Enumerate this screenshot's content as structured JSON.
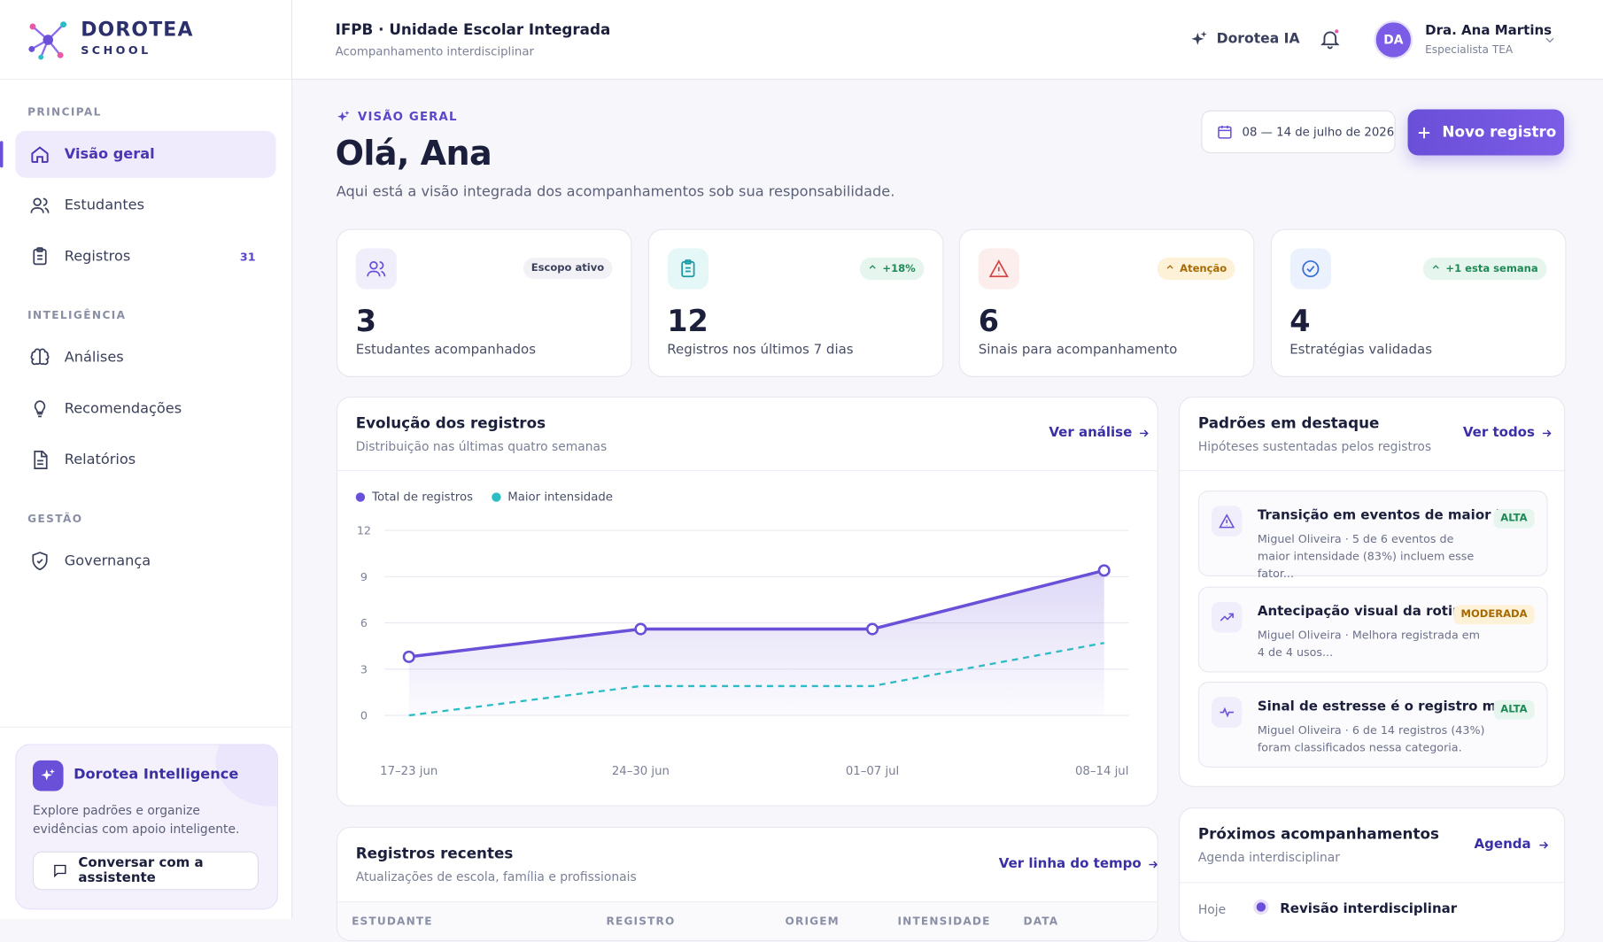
{
  "sidebar": {
    "brand": "DOROTEA",
    "brand_sub": "SCHOOL",
    "sections": [
      {
        "title": "PRINCIPAL",
        "items": [
          {
            "label": "Visão geral"
          },
          {
            "label": "Estudantes"
          },
          {
            "label": "Registros",
            "badge": 31
          }
        ]
      },
      {
        "title": "INTELIGÊNCIA",
        "items": [
          {
            "label": "Análises"
          },
          {
            "label": "Recomendações"
          },
          {
            "label": "Relatórios"
          }
        ]
      },
      {
        "title": "GESTÃO",
        "items": [
          {
            "label": "Governança"
          }
        ]
      }
    ],
    "promo": {
      "title": "Dorotea Intelligence",
      "text": "Explore padrões e organize evidências com apoio inteligente.",
      "button": "Conversar com a assistente"
    }
  },
  "header": {
    "title": "IFPB · Unidade Escolar Integrada",
    "subtitle": "Acompanhamento interdisciplinar",
    "ai": "Dorotea IA",
    "avatar": "DA",
    "user": "Dra. Ana Martins",
    "role": "Especialista TEA"
  },
  "main": {
    "eyebrow": "VISÃO GERAL",
    "greeting": "Olá, Ana",
    "intro": "Aqui está a visão integrada dos acompanhamentos sob sua responsabilidade.",
    "date_range": "08 — 14 de julho de 2026",
    "new_button": "Novo registro"
  },
  "stats": [
    {
      "value": 3,
      "label": "Estudantes acompanhados",
      "tag": "Escopo ativo"
    },
    {
      "value": 12,
      "label": "Registros nos últimos 7 dias",
      "tag": "+18%"
    },
    {
      "value": 6,
      "label": "Sinais para acompanhamento",
      "tag": "Atenção"
    },
    {
      "value": 4,
      "label": "Estratégias validadas",
      "tag": "+1 esta semana"
    }
  ],
  "chart_data": {
    "type": "line",
    "title": "Evolução dos registros",
    "subtitle": "Distribuição nas últimas quatro semanas",
    "link": "Ver análise",
    "categories": [
      "17–23 jun",
      "24–30 jun",
      "01–07 jul",
      "08–14 jul"
    ],
    "series": [
      {
        "name": "Total de registros",
        "color": "#6a4fd8",
        "style": "solid",
        "markers": true,
        "area": true,
        "values": [
          3.8,
          5.6,
          5.6,
          9.4
        ]
      },
      {
        "name": "Maior intensidade",
        "color": "#2bbcc4",
        "style": "dashed",
        "markers": false,
        "area": false,
        "values": [
          0,
          1.9,
          1.9,
          4.7
        ]
      }
    ],
    "ylim": [
      0,
      12
    ],
    "yticks": [
      0,
      3,
      6,
      9,
      12
    ],
    "grid": true
  },
  "patterns": {
    "title": "Padrões em destaque",
    "subtitle": "Hipóteses sustentadas pelos registros",
    "link": "Ver todos",
    "items": [
      {
        "title": "Transição em eventos de maior in...",
        "text": "Miguel Oliveira · 5 de 6 eventos de maior intensidade (83%) incluem esse fator...",
        "tag": "ALTA"
      },
      {
        "title": "Antecipação visual da rotin...",
        "text": "Miguel Oliveira · Melhora registrada em 4 de 4 usos...",
        "tag": "MODERADA"
      },
      {
        "title": "Sinal de estresse é o registro mais...",
        "text": "Miguel Oliveira · 6 de 14 registros (43%) foram classificados nessa categoria.",
        "tag": "ALTA"
      }
    ]
  },
  "recent": {
    "title": "Registros recentes",
    "subtitle": "Atualizações de escola, família e profissionais",
    "link": "Ver linha do tempo",
    "columns": [
      "ESTUDANTE",
      "REGISTRO",
      "ORIGEM",
      "INTENSIDADE",
      "DATA"
    ]
  },
  "upcoming": {
    "title": "Próximos acompanhamentos",
    "subtitle": "Agenda interdisciplinar",
    "link": "Agenda",
    "items": [
      {
        "when": "Hoje",
        "title": "Revisão interdisciplinar"
      }
    ]
  }
}
